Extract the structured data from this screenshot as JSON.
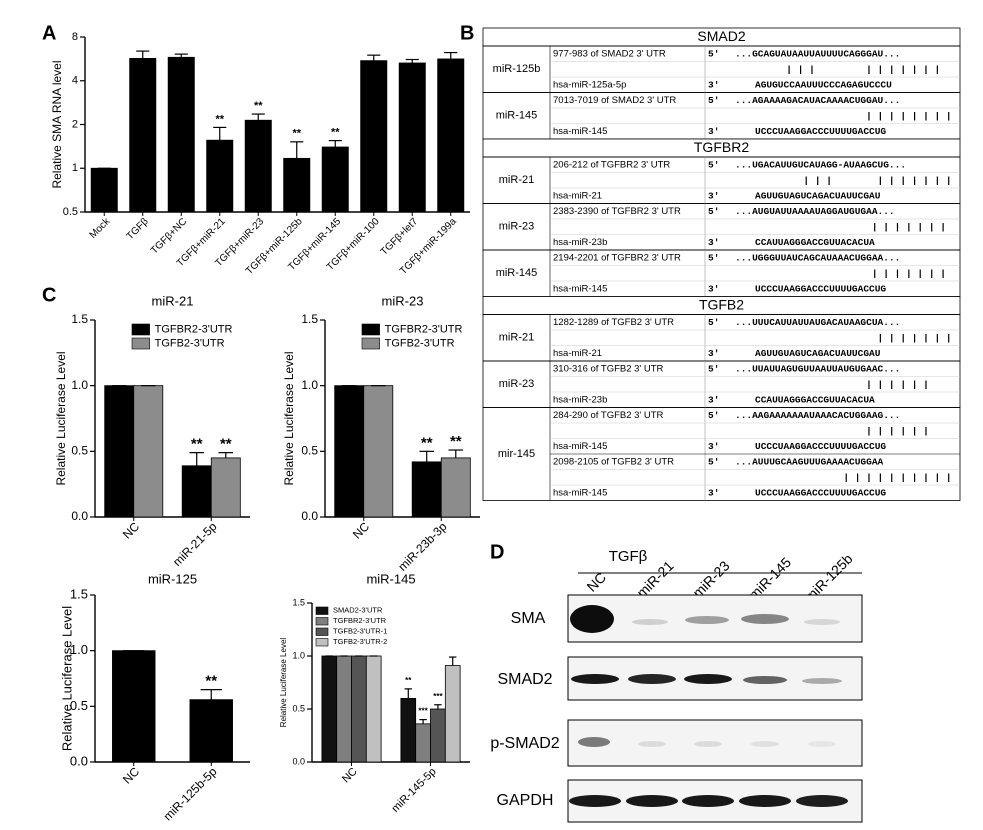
{
  "panel_labels": [
    "A",
    "B",
    "C",
    "D"
  ],
  "chart_data": [
    {
      "type": "bar",
      "ylabel": "Relative SMA RNA level",
      "categories": [
        "Mock",
        "TGFβ",
        "TGFβ+NC",
        "TGFβ+miR-21",
        "TGFβ+miR-23",
        "TGFβ+miR-125b",
        "TGFβ+miR-145",
        "TGFβ+miR-100",
        "TGFβ+let7",
        "TGFβ+miR-199a"
      ],
      "values": [
        1,
        5.7,
        5.8,
        1.56,
        2.14,
        1.17,
        1.4,
        5.5,
        5.3,
        5.65
      ],
      "errors": [
        0,
        0.7,
        0.3,
        0.35,
        0.22,
        0.35,
        0.15,
        0.5,
        0.3,
        0.6
      ],
      "significance": [
        null,
        null,
        null,
        "**",
        "**",
        "**",
        "**",
        null,
        null,
        null
      ],
      "color": "#000000",
      "log_scale": true,
      "ylim": [
        0.5,
        8
      ],
      "yticks": [
        0.5,
        1,
        2,
        4,
        8
      ]
    },
    {
      "type": "bar",
      "title": "miR-21",
      "ylabel": "Relative Luciferase Level",
      "categories": [
        "NC",
        "miR-21-5p"
      ],
      "series": [
        {
          "name": "TGFBR2-3'UTR",
          "color": "#000000",
          "values": [
            1,
            0.39
          ],
          "errors": [
            0,
            0.1
          ],
          "significance": [
            null,
            "**"
          ]
        },
        {
          "name": "TGFB2-3'UTR",
          "color": "#8c8c8c",
          "values": [
            1,
            0.45
          ],
          "errors": [
            0,
            0.04
          ],
          "significance": [
            null,
            "**"
          ]
        }
      ],
      "legend": "upper right",
      "ylim": [
        0,
        1.5
      ],
      "yticks": [
        {
          "value": 0,
          "label": "0.0"
        },
        0.5,
        {
          "value": 1,
          "label": "1.0"
        },
        1.5
      ]
    },
    {
      "type": "bar",
      "title": "miR-23",
      "ylabel": "Relative Luciferase Level",
      "categories": [
        "NC",
        "miR-23b-3p"
      ],
      "series": [
        {
          "name": "TGFBR2-3'UTR",
          "color": "#000000",
          "values": [
            1,
            0.42
          ],
          "errors": [
            0,
            0.08
          ],
          "significance": [
            null,
            "**"
          ]
        },
        {
          "name": "TGFB2-3'UTR",
          "color": "#8c8c8c",
          "values": [
            1,
            0.45
          ],
          "errors": [
            0,
            0.06
          ],
          "significance": [
            null,
            "**"
          ]
        }
      ],
      "legend": "upper right",
      "ylim": [
        0,
        1.5
      ],
      "yticks": [
        {
          "value": 0,
          "label": "0.0"
        },
        0.5,
        {
          "value": 1,
          "label": "1.0"
        },
        1.5
      ]
    },
    {
      "type": "bar",
      "title": "miR-125",
      "ylabel": "Relative Luciferase Level",
      "categories": [
        "NC",
        "miR-125b-5p"
      ],
      "values": [
        1,
        0.56
      ],
      "errors": [
        0,
        0.09
      ],
      "significance": [
        null,
        "**"
      ],
      "color": "#000000",
      "ylim": [
        0,
        1.5
      ],
      "yticks": [
        {
          "value": 0,
          "label": "0.0"
        },
        0.5,
        {
          "value": 1,
          "label": "1.0"
        },
        1.5
      ]
    },
    {
      "type": "bar",
      "title": "miR-145",
      "ylabel": "Relative Luciferase Level",
      "categories": [
        "NC",
        "miR-145-5p"
      ],
      "series": [
        {
          "name": "SMAD2-3'UTR",
          "color": "#111111",
          "values": [
            1,
            0.6
          ],
          "errors": [
            0,
            0.09
          ],
          "significance": [
            null,
            "**"
          ]
        },
        {
          "name": "TGFBR2-3'UTR",
          "color": "#7f7f7f",
          "values": [
            1,
            0.36
          ],
          "errors": [
            0,
            0.04
          ],
          "significance": [
            null,
            "***"
          ]
        },
        {
          "name": "TGFB2-3'UTR-1",
          "color": "#555555",
          "values": [
            1,
            0.5
          ],
          "errors": [
            0,
            0.04
          ],
          "significance": [
            null,
            "***"
          ]
        },
        {
          "name": "TGFB2-3'UTR-2",
          "color": "#c0c0c0",
          "values": [
            1,
            0.91
          ],
          "errors": [
            0,
            0.08
          ],
          "significance": [
            null,
            null
          ]
        }
      ],
      "legend": "upper left",
      "ylim": [
        0,
        1.5
      ],
      "yticks": [
        {
          "value": 0,
          "label": "0.0"
        },
        0.5,
        {
          "value": 1,
          "label": "1.0"
        },
        1.5
      ]
    }
  ],
  "alignment": {
    "genes": [
      {
        "gene": "SMAD2",
        "mirnas": [
          {
            "mirna": "miR-125b",
            "sites": [
              {
                "target": "977-983 of SMAD2 3' UTR",
                "prime5": "5'",
                "seq5": "...GCAGUAUAAUUAUUUUCAGGGAU...",
                "pairing": "         | | |         | | | | | | |",
                "mirna_name": "hsa-miR-125a-5p",
                "prime3": "3'",
                "seq3": "AGUGUCCAAUUUCCCAGAGUCCCU"
              }
            ]
          },
          {
            "mirna": "miR-145",
            "sites": [
              {
                "target": "7013-7019 of SMAD2 3' UTR",
                "prime5": "5'",
                "seq5": "...AGAAAAGACAUACAAAACUGGAU...",
                "pairing": "                       | | | | | | | |",
                "mirna_name": "hsa-miR-145",
                "prime3": "3'",
                "seq3": "UCCCUAAGGACCCUUUUGACCUG"
              }
            ]
          }
        ]
      },
      {
        "gene": "TGFBR2",
        "mirnas": [
          {
            "mirna": "miR-21",
            "sites": [
              {
                "target": "206-212 of TGFBR2 3' UTR",
                "prime5": "5'",
                "seq5": "...UGACAUUGUCAUAGG-AUAAGCUG...",
                "pairing": "            | | |        | | | | | | |",
                "mirna_name": "hsa-miR-21",
                "prime3": "3'",
                "seq3": "AGUUGUAGUCAGACUAUUCGAU"
              }
            ]
          },
          {
            "mirna": "miR-23",
            "sites": [
              {
                "target": "2383-2390 of TGFBR2 3' UTR",
                "prime5": "5'",
                "seq5": "...AUGUAUUAAAAUAGGAUGUGAA...",
                "pairing": "                        | | | | | | |",
                "mirna_name": "hsa-miR-23b",
                "prime3": "3'",
                "seq3": "CCAUUAGGGACCGUUACACUA"
              }
            ]
          },
          {
            "mirna": "miR-145",
            "sites": [
              {
                "target": "2194-2201 of TGFBR2 3' UTR",
                "prime5": "5'",
                "seq5": "...UGGGUUAUCAGCAUAAACUGGAA...",
                "pairing": "                        | | | | | | |",
                "mirna_name": "hsa-miR-145",
                "prime3": "3'",
                "seq3": "UCCCUAAGGACCCUUUUGACCUG"
              }
            ]
          }
        ]
      },
      {
        "gene": "TGFB2",
        "mirnas": [
          {
            "mirna": "miR-21",
            "sites": [
              {
                "target": "1282-1289 of TGFB2 3' UTR",
                "prime5": "5'",
                "seq5": "...UUUCAUUAUUAUGACAUAAGCUA...",
                "pairing": "                         | | | | | | |",
                "mirna_name": "hsa-miR-21",
                "prime3": "3'",
                "seq3": "AGUUGUAGUCAGACUAUUCGAU"
              }
            ]
          },
          {
            "mirna": "miR-23",
            "sites": [
              {
                "target": "310-316 of TGFB2 3' UTR",
                "prime5": "5'",
                "seq5": "...UUAUUAGUGUUAAUUAUGUGAAC...",
                "pairing": "                       | | | | | |",
                "mirna_name": "hsa-miR-23b",
                "prime3": "3'",
                "seq3": "CCAUUAGGGACCGUUACACUA"
              }
            ]
          },
          {
            "mirna": "mir-145",
            "sites": [
              {
                "target": "284-290 of TGFB2 3' UTR",
                "prime5": "5'",
                "seq5": "...AAGAAAAAAAUAAACACUGGAAG...",
                "pairing": "                       | | | | | |",
                "mirna_name": "hsa-miR-145",
                "prime3": "3'",
                "seq3": "UCCCUAAGGACCCUUUUGACCUG"
              },
              {
                "target": "2098-2105 of TGFB2 3' UTR",
                "prime5": "5'",
                "seq5": "...AUUUGCAAGUUUGAAAACUGGAA",
                "pairing": "                   | | | | | | | | | |",
                "mirna_name": "hsa-miR-145",
                "prime3": "3'",
                "seq3": "UCCCUAAGGACCCUUUUGACCUG"
              }
            ]
          }
        ]
      }
    ]
  },
  "blot": {
    "treatment": "TGFβ",
    "lanes": [
      "NC",
      "miR-21",
      "miR-23",
      "miR-145",
      "miR-125b"
    ],
    "proteins": [
      "SMA",
      "SMAD2",
      "p-SMAD2",
      "GAPDH"
    ]
  }
}
